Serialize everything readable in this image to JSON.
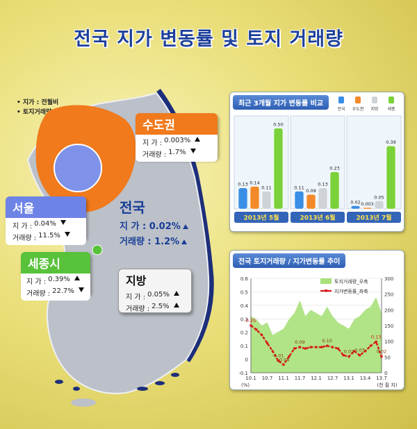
{
  "title": "전국 지가 변동률 및 토지 거래량",
  "notes": [
    "지가 : 전월비",
    "토지거래량 : 전년동월비"
  ],
  "regions": {
    "capital": {
      "name": "수도권",
      "land_label": "지  가 : ",
      "land_value": "0.003%",
      "land_dir": "up",
      "trade_label": "거래량 : ",
      "trade_value": "1.7%",
      "trade_dir": "down",
      "color": "#f07a1c"
    },
    "seoul": {
      "name": "서울",
      "land_label": "지  가 : ",
      "land_value": "0.04%",
      "land_dir": "down",
      "trade_label": "거래량 : ",
      "trade_value": "11.5%",
      "trade_dir": "down",
      "color": "#6d83e6"
    },
    "sejong": {
      "name": "세종시",
      "land_label": "지  가 : ",
      "land_value": "0.39%",
      "land_dir": "up",
      "trade_label": "거래량 : ",
      "trade_value": "22.7%",
      "trade_dir": "down",
      "color": "#58c23a"
    },
    "local": {
      "name": "지방",
      "land_label": "지  가 : ",
      "land_value": "0.05%",
      "land_dir": "up",
      "trade_label": "거래량 : ",
      "trade_value": "2.5%",
      "trade_dir": "up"
    },
    "nation": {
      "name": "전국",
      "land_label": "지  가 : ",
      "land_value": "0.02%",
      "land_dir": "up",
      "trade_label": "거래량 : ",
      "trade_value": "1.2%",
      "trade_dir": "up"
    }
  },
  "chart_data": [
    {
      "type": "bar",
      "title": "최근 3개월 지가 변동률 비교",
      "legend": [
        "전국",
        "수도권",
        "지방",
        "세종"
      ],
      "series_colors": [
        "#3a8ee6",
        "#f28a2a",
        "#cfd3d8",
        "#7ad13a"
      ],
      "groups": [
        {
          "label": "2013년 5월",
          "values": [
            0.13,
            0.14,
            0.11,
            0.5
          ],
          "labels": [
            "0.13",
            "0.14",
            "0.11",
            "0.50"
          ]
        },
        {
          "label": "2013년 6월",
          "values": [
            0.11,
            0.09,
            0.13,
            0.23
          ],
          "labels": [
            "0.11",
            "0.09",
            "0.13",
            "0.23"
          ]
        },
        {
          "label": "2013년 7월",
          "values": [
            0.02,
            0.003,
            0.05,
            0.39
          ],
          "labels": [
            "0.02",
            "0.003",
            "0.05",
            "0.39"
          ]
        }
      ],
      "ylim": [
        0,
        0.55
      ]
    },
    {
      "type": "line",
      "title": "전국 토지거래량 / 지가변동률 추이",
      "legend_area": "토지거래량_우축",
      "legend_line": "지가변동률_좌축",
      "area_color": "#a8e07a",
      "line_color": "#d81818",
      "y_left_ticks": [
        "0.6",
        "0.5",
        "0.4",
        "0.3",
        "0.2",
        "0.1",
        "0",
        "-0.1"
      ],
      "y_right_ticks": [
        "300",
        "250",
        "200",
        "150",
        "100",
        "50",
        "0"
      ],
      "x_ticks": [
        "10.1",
        "10.7",
        "11.1",
        "11.7",
        "12.1",
        "12.7",
        "13.1",
        "13.4",
        "13.7"
      ],
      "y_left_unit": "(%)",
      "y_right_unit": "(천 필 지)",
      "ylim_left": [
        -0.1,
        0.6
      ],
      "ylim_right": [
        0,
        300
      ],
      "land_change": [
        0.25,
        0.22,
        0.18,
        0.12,
        0.06,
        -0.01,
        -0.04,
        0.02,
        0.08,
        0.09,
        0.08,
        0.09,
        0.09,
        0.09,
        0.1,
        0.09,
        0.08,
        0.03,
        0.02,
        0.06,
        0.03,
        0.06,
        0.1,
        0.13,
        0.02
      ],
      "trade_volume": [
        180,
        170,
        150,
        160,
        120,
        130,
        140,
        170,
        190,
        230,
        180,
        200,
        190,
        180,
        210,
        180,
        160,
        150,
        140,
        170,
        180,
        200,
        210,
        240,
        190
      ],
      "point_labels": [
        {
          "index": 0,
          "text": "0.25"
        },
        {
          "index": 5,
          "text": "-0.01"
        },
        {
          "index": 6,
          "text": "-0.04"
        },
        {
          "index": 9,
          "text": "0.09"
        },
        {
          "index": 14,
          "text": "0.10"
        },
        {
          "index": 18,
          "text": "0.02"
        },
        {
          "index": 20,
          "text": "0.03"
        },
        {
          "index": 23,
          "text": "0.13"
        },
        {
          "index": 24,
          "text": "0.02"
        }
      ]
    }
  ]
}
